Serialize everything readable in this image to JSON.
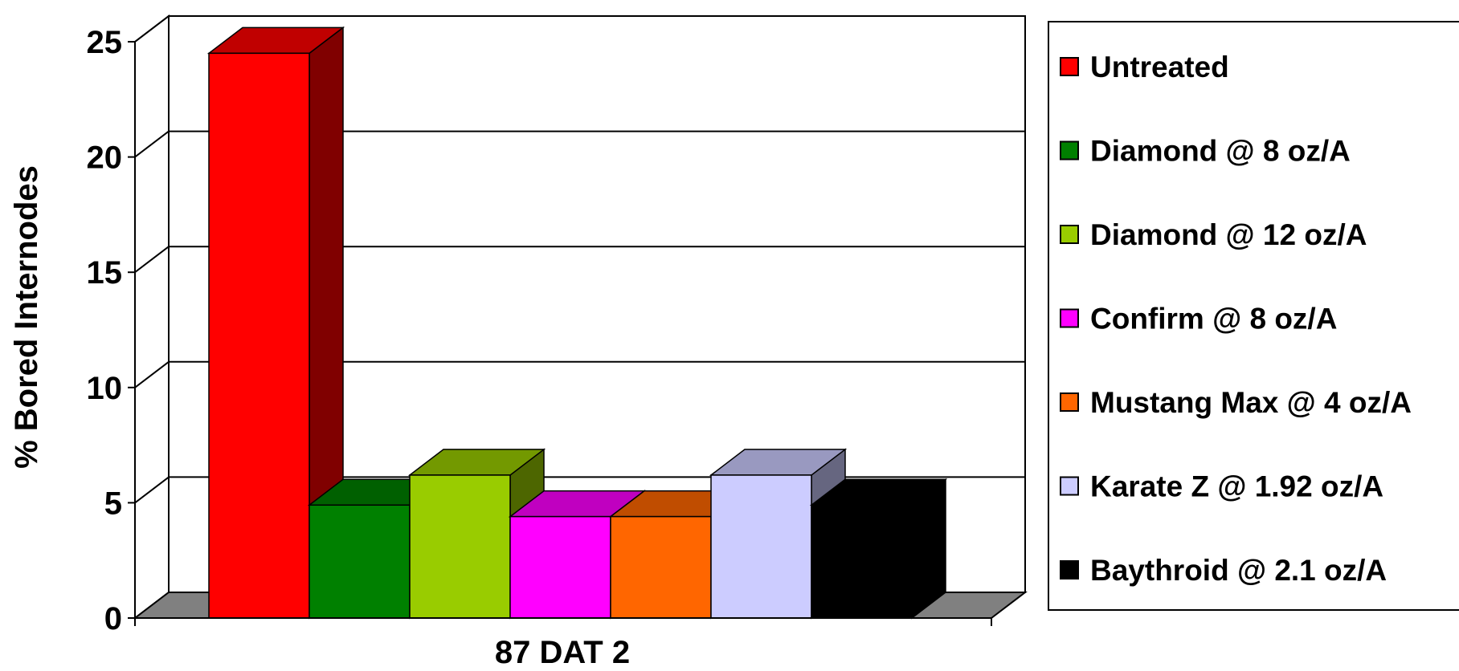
{
  "chart_data": {
    "type": "bar",
    "style": "3d",
    "title": "",
    "xlabel": "87 DAT 2",
    "ylabel": "% Bored Internodes",
    "ylim": [
      0,
      25
    ],
    "yticks": [
      0,
      5,
      10,
      15,
      20,
      25
    ],
    "grid": true,
    "legend_position": "right",
    "categories": [
      "87 DAT 2"
    ],
    "series": [
      {
        "name": "Untreated",
        "values": [
          24.5
        ],
        "color": "#ff0000",
        "top_color": "#c00000",
        "side_color": "#800000"
      },
      {
        "name": "Diamond @ 8 oz/A",
        "values": [
          4.9
        ],
        "color": "#008000",
        "top_color": "#006000",
        "side_color": "#004000"
      },
      {
        "name": "Diamond @ 12 oz/A",
        "values": [
          6.2
        ],
        "color": "#99cc00",
        "top_color": "#739900",
        "side_color": "#4d6600"
      },
      {
        "name": "Confirm @ 8 oz/A",
        "values": [
          4.4
        ],
        "color": "#ff00ff",
        "top_color": "#c000c0",
        "side_color": "#800080"
      },
      {
        "name": "Mustang Max @ 4 oz/A",
        "values": [
          4.4
        ],
        "color": "#ff6600",
        "top_color": "#c04d00",
        "side_color": "#803300"
      },
      {
        "name": "Karate Z @ 1.92 oz/A",
        "values": [
          6.2
        ],
        "color": "#ccccff",
        "top_color": "#9999c0",
        "side_color": "#666680"
      },
      {
        "name": "Baythroid @ 2.1 oz/A",
        "values": [
          4.9
        ],
        "color": "#000000",
        "top_color": "#000000",
        "side_color": "#000000"
      }
    ]
  }
}
